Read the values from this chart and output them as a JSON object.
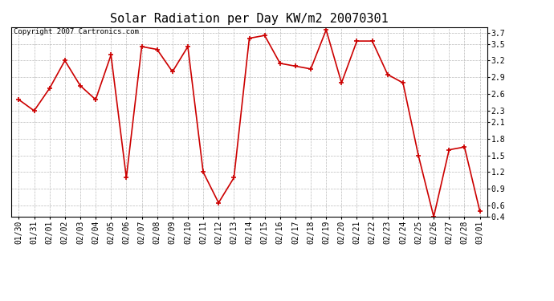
{
  "title": "Solar Radiation per Day KW/m2 20070301",
  "copyright_text": "Copyright 2007 Cartronics.com",
  "dates": [
    "01/30",
    "01/31",
    "02/01",
    "02/02",
    "02/03",
    "02/04",
    "02/05",
    "02/06",
    "02/07",
    "02/08",
    "02/09",
    "02/10",
    "02/11",
    "02/12",
    "02/13",
    "02/14",
    "02/15",
    "02/16",
    "02/17",
    "02/18",
    "02/19",
    "02/20",
    "02/21",
    "02/22",
    "02/23",
    "02/24",
    "02/25",
    "02/26",
    "02/27",
    "02/28",
    "03/01"
  ],
  "values": [
    2.5,
    2.3,
    2.7,
    3.2,
    2.75,
    2.5,
    3.3,
    1.1,
    3.45,
    3.4,
    3.0,
    3.45,
    1.2,
    0.65,
    1.1,
    3.6,
    3.65,
    3.15,
    3.1,
    3.05,
    3.75,
    2.8,
    3.55,
    3.55,
    2.95,
    2.8,
    1.5,
    0.4,
    1.6,
    1.65,
    0.5
  ],
  "ylim": [
    0.4,
    3.8
  ],
  "yticks": [
    3.7,
    3.5,
    3.2,
    2.9,
    2.6,
    2.3,
    2.1,
    1.8,
    1.5,
    1.2,
    0.9,
    0.6,
    0.4
  ],
  "line_color": "#cc0000",
  "marker": "+",
  "marker_size": 5,
  "background_color": "#ffffff",
  "grid_color": "#bbbbbb",
  "title_fontsize": 11,
  "tick_fontsize": 7,
  "copyright_fontsize": 6.5
}
